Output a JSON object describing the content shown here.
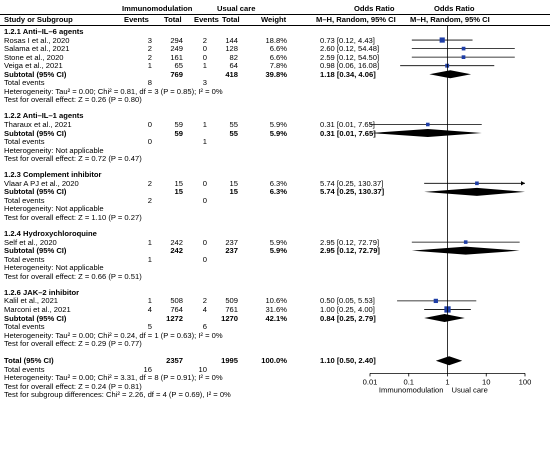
{
  "header": {
    "group1": "Immunomodulation",
    "group2": "Usual care",
    "or_title": "Odds Ratio",
    "or_title_plot": "Odds Ratio",
    "col_study": "Study or Subgroup",
    "col_events1": "Events",
    "col_total1": "Total",
    "col_events2": "Events",
    "col_total2": "Total",
    "col_weight": "Weight",
    "col_method": "M–H, Random, 95% CI",
    "col_method_plot": "M–H, Random, 95% CI"
  },
  "subgroups": [
    {
      "title": "1.2.1 Anti–IL–6 agents",
      "studies": [
        {
          "name": "Rosas I et al., 2020",
          "e1": "3",
          "t1": "294",
          "e2": "2",
          "t2": "144",
          "w": "18.8%",
          "ci": "0.73 [0.12, 4.43]",
          "or": 0.73,
          "lo": 0.12,
          "hi": 4.43
        },
        {
          "name": "Salama et al., 2021",
          "e1": "2",
          "t1": "249",
          "e2": "0",
          "t2": "128",
          "w": "6.6%",
          "ci": "2.60 [0.12, 54.48]",
          "or": 2.6,
          "lo": 0.12,
          "hi": 54.48
        },
        {
          "name": "Stone et al., 2020",
          "e1": "2",
          "t1": "161",
          "e2": "0",
          "t2": "82",
          "w": "6.6%",
          "ci": "2.59 [0.12, 54.50]",
          "or": 2.59,
          "lo": 0.12,
          "hi": 54.5
        },
        {
          "name": "Veiga et al., 2021",
          "e1": "1",
          "t1": "65",
          "e2": "1",
          "t2": "64",
          "w": "7.8%",
          "ci": "0.98 [0.06, 16.08]",
          "or": 0.98,
          "lo": 0.06,
          "hi": 16.08
        }
      ],
      "subtotal": {
        "label": "Subtotal (95% CI)",
        "t1": "769",
        "t2": "418",
        "w": "39.8%",
        "ci": "1.18 [0.34, 4.06]",
        "or": 1.18,
        "lo": 0.34,
        "hi": 4.06
      },
      "events": {
        "label": "Total events",
        "e1": "8",
        "e2": "3"
      },
      "het": "Heterogeneity: Tau² = 0.00; Chi² = 0.81, df = 3 (P = 0.85); I² = 0%",
      "test": "Test for overall effect: Z = 0.26 (P = 0.80)"
    },
    {
      "title": "1.2.2 Anti–IL–1 agents",
      "studies": [
        {
          "name": "Tharaux et al., 2021",
          "e1": "0",
          "t1": "59",
          "e2": "1",
          "t2": "55",
          "w": "5.9%",
          "ci": "0.31 [0.01, 7.65]",
          "or": 0.31,
          "lo": 0.01,
          "hi": 7.65
        }
      ],
      "subtotal": {
        "label": "Subtotal (95% CI)",
        "t1": "59",
        "t2": "55",
        "w": "5.9%",
        "ci": "0.31 [0.01, 7.65]",
        "or": 0.31,
        "lo": 0.01,
        "hi": 7.65
      },
      "events": {
        "label": "Total events",
        "e1": "0",
        "e2": "1"
      },
      "het": "Heterogeneity: Not applicable",
      "test": "Test for overall effect: Z = 0.72 (P = 0.47)"
    },
    {
      "title": "1.2.3 Complement inhibitor",
      "studies": [
        {
          "name": "Vlaar A PJ et al., 2020",
          "e1": "2",
          "t1": "15",
          "e2": "0",
          "t2": "15",
          "w": "6.3%",
          "ci": "5.74 [0.25, 130.37]",
          "or": 5.74,
          "lo": 0.25,
          "hi": 130.37
        }
      ],
      "subtotal": {
        "label": "Subtotal (95% CI)",
        "t1": "15",
        "t2": "15",
        "w": "6.3%",
        "ci": "5.74 [0.25, 130.37]",
        "or": 5.74,
        "lo": 0.25,
        "hi": 130.37
      },
      "events": {
        "label": "Total events",
        "e1": "2",
        "e2": "0"
      },
      "het": "Heterogeneity: Not applicable",
      "test": "Test for overall effect: Z = 1.10 (P = 0.27)"
    },
    {
      "title": "1.2.4 Hydroxychloroquine",
      "studies": [
        {
          "name": "Self et al., 2020",
          "e1": "1",
          "t1": "242",
          "e2": "0",
          "t2": "237",
          "w": "5.9%",
          "ci": "2.95 [0.12, 72.79]",
          "or": 2.95,
          "lo": 0.12,
          "hi": 72.79
        }
      ],
      "subtotal": {
        "label": "Subtotal (95% CI)",
        "t1": "242",
        "t2": "237",
        "w": "5.9%",
        "ci": "2.95 [0.12, 72.79]",
        "or": 2.95,
        "lo": 0.12,
        "hi": 72.79
      },
      "events": {
        "label": "Total events",
        "e1": "1",
        "e2": "0"
      },
      "het": "Heterogeneity: Not applicable",
      "test": "Test for overall effect: Z = 0.66 (P = 0.51)"
    },
    {
      "title": "1.2.6 JAK–2 inhibitor",
      "studies": [
        {
          "name": "Kalil et al., 2021",
          "e1": "1",
          "t1": "508",
          "e2": "2",
          "t2": "509",
          "w": "10.6%",
          "ci": "0.50 [0.05, 5.53]",
          "or": 0.5,
          "lo": 0.05,
          "hi": 5.53
        },
        {
          "name": "Marconi et al., 2021",
          "e1": "4",
          "t1": "764",
          "e2": "4",
          "t2": "761",
          "w": "31.6%",
          "ci": "1.00 [0.25, 4.00]",
          "or": 1.0,
          "lo": 0.25,
          "hi": 4.0
        }
      ],
      "subtotal": {
        "label": "Subtotal (95% CI)",
        "t1": "1272",
        "t2": "1270",
        "w": "42.1%",
        "ci": "0.84 [0.25, 2.79]",
        "or": 0.84,
        "lo": 0.25,
        "hi": 2.79
      },
      "events": {
        "label": "Total events",
        "e1": "5",
        "e2": "6"
      },
      "het": "Heterogeneity: Tau² = 0.00; Chi² = 0.24, df = 1 (P = 0.63); I² = 0%",
      "test": "Test for overall effect: Z = 0.29 (P = 0.77)"
    }
  ],
  "total": {
    "label": "Total (95% CI)",
    "t1": "2357",
    "t2": "1995",
    "w": "100.0%",
    "ci": "1.10 [0.50, 2.40]",
    "or": 1.1,
    "lo": 0.5,
    "hi": 2.4,
    "events_label": "Total events",
    "e1": "16",
    "e2": "10",
    "het": "Heterogeneity: Tau² = 0.00; Chi² = 3.31, df = 8 (P = 0.91); I² = 0%",
    "test": "Test for overall effect: Z = 0.24 (P = 0.81)",
    "subgroup_diff": "Test for subgroup differences: Chi² = 2.26, df = 4 (P = 0.69), I² = 0%"
  },
  "chart_data": {
    "type": "scatter",
    "scale": "log",
    "xlim": [
      0.01,
      100
    ],
    "xticks": [
      "0.01",
      "0.1",
      "1",
      "10",
      "100"
    ],
    "xlabel_left": "Immunomodulation",
    "xlabel_right": "Usual care",
    "reference_line": 1,
    "colors": {
      "square": "#1f3ea6",
      "line": "#000000",
      "diamond": "#000000"
    }
  }
}
